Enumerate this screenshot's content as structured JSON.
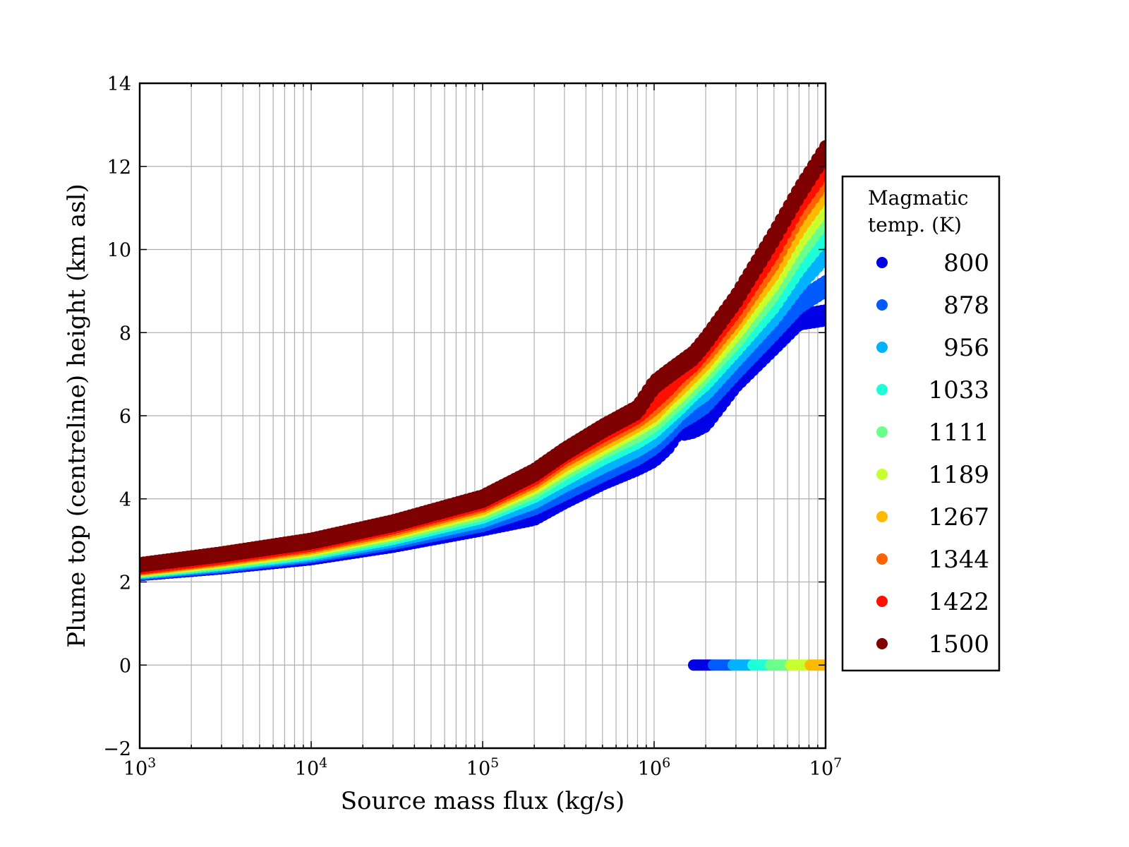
{
  "chart_data": {
    "type": "scatter",
    "xlabel": "Source mass flux (kg/s)",
    "ylabel": "Plume top (centreline) height (km asl)",
    "x_scale": "log",
    "xlim": [
      1000,
      10000000
    ],
    "ylim": [
      -2,
      14
    ],
    "grid": true,
    "x_ticks": [
      {
        "value": 1000,
        "base": "10",
        "exp": "3"
      },
      {
        "value": 10000,
        "base": "10",
        "exp": "4"
      },
      {
        "value": 100000,
        "base": "10",
        "exp": "5"
      },
      {
        "value": 1000000,
        "base": "10",
        "exp": "6"
      },
      {
        "value": 10000000,
        "base": "10",
        "exp": "7"
      }
    ],
    "y_ticks": [
      {
        "value": -2,
        "label": "−2"
      },
      {
        "value": 0,
        "label": "0"
      },
      {
        "value": 2,
        "label": "2"
      },
      {
        "value": 4,
        "label": "4"
      },
      {
        "value": 6,
        "label": "6"
      },
      {
        "value": 8,
        "label": "8"
      },
      {
        "value": 10,
        "label": "10"
      },
      {
        "value": 12,
        "label": "12"
      },
      {
        "value": 14,
        "label": "14"
      }
    ],
    "legend": {
      "title_lines": [
        "Magmatic",
        "temp. (K)"
      ],
      "placement": "right"
    },
    "series": [
      {
        "name": "800",
        "color": "#0000e8",
        "x": [
          1000,
          3000,
          10000,
          30000,
          100000,
          200000,
          300000,
          500000,
          800000,
          1000000,
          1200000,
          1400000,
          1500000,
          1700000,
          2000000,
          3000000,
          5000000,
          7000000,
          10000000
        ],
        "y": [
          2.17,
          2.33,
          2.55,
          2.85,
          3.25,
          3.5,
          3.9,
          4.35,
          4.7,
          4.9,
          5.2,
          5.6,
          5.55,
          5.6,
          5.75,
          6.7,
          7.6,
          8.2,
          8.3
        ]
      },
      {
        "name": "878",
        "color": "#005bff",
        "x": [
          1000,
          3000,
          10000,
          30000,
          100000,
          200000,
          300000,
          500000,
          800000,
          1000000,
          1200000,
          1400000,
          1700000,
          2000000,
          3000000,
          5000000,
          7000000,
          10000000
        ],
        "y": [
          2.19,
          2.36,
          2.6,
          2.92,
          3.35,
          3.75,
          4.1,
          4.55,
          4.95,
          5.2,
          5.5,
          5.8,
          6.0,
          6.2,
          7.0,
          7.95,
          8.6,
          9.0
        ]
      },
      {
        "name": "956",
        "color": "#00b2ff",
        "x": [
          1000,
          3000,
          10000,
          30000,
          100000,
          200000,
          300000,
          500000,
          800000,
          1000000,
          1200000,
          1400000,
          1700000,
          2000000,
          3000000,
          5000000,
          7000000,
          10000000
        ],
        "y": [
          2.21,
          2.39,
          2.64,
          2.98,
          3.45,
          3.9,
          4.3,
          4.75,
          5.15,
          5.4,
          5.7,
          6.0,
          6.3,
          6.5,
          7.3,
          8.3,
          9.1,
          9.8
        ]
      },
      {
        "name": "1033",
        "color": "#1dffd8",
        "x": [
          1000,
          3000,
          10000,
          30000,
          100000,
          200000,
          300000,
          500000,
          800000,
          1000000,
          1200000,
          1400000,
          1700000,
          2000000,
          3000000,
          5000000,
          7000000,
          10000000
        ],
        "y": [
          2.23,
          2.42,
          2.68,
          3.04,
          3.55,
          4.05,
          4.45,
          4.95,
          5.35,
          5.6,
          5.9,
          6.15,
          6.5,
          6.75,
          7.55,
          8.6,
          9.5,
          10.3
        ]
      },
      {
        "name": "1111",
        "color": "#6bff8b",
        "x": [
          1000,
          3000,
          10000,
          30000,
          100000,
          200000,
          300000,
          500000,
          800000,
          1000000,
          1200000,
          1400000,
          1700000,
          2000000,
          3000000,
          5000000,
          7000000,
          10000000
        ],
        "y": [
          2.25,
          2.45,
          2.72,
          3.1,
          3.62,
          4.15,
          4.6,
          5.1,
          5.5,
          5.75,
          6.05,
          6.3,
          6.65,
          6.95,
          7.75,
          8.9,
          9.85,
          10.7
        ]
      },
      {
        "name": "1189",
        "color": "#c8ff2f",
        "x": [
          1000,
          3000,
          10000,
          30000,
          100000,
          200000,
          300000,
          500000,
          800000,
          1000000,
          1200000,
          1400000,
          1700000,
          2000000,
          3000000,
          5000000,
          7000000,
          10000000
        ],
        "y": [
          2.27,
          2.48,
          2.76,
          3.15,
          3.7,
          4.25,
          4.7,
          5.2,
          5.65,
          5.9,
          6.2,
          6.45,
          6.8,
          7.1,
          7.95,
          9.15,
          10.15,
          11.0
        ]
      },
      {
        "name": "1267",
        "color": "#ffba00",
        "x": [
          1000,
          3000,
          10000,
          30000,
          100000,
          200000,
          300000,
          500000,
          800000,
          1000000,
          1200000,
          1400000,
          1700000,
          2000000,
          3000000,
          5000000,
          7000000,
          10000000
        ],
        "y": [
          2.29,
          2.51,
          2.8,
          3.2,
          3.76,
          4.33,
          4.8,
          5.3,
          5.75,
          6.0,
          6.35,
          6.6,
          6.95,
          7.25,
          8.15,
          9.4,
          10.45,
          11.35
        ]
      },
      {
        "name": "1344",
        "color": "#ff6300",
        "x": [
          1000,
          3000,
          10000,
          30000,
          100000,
          200000,
          300000,
          500000,
          800000,
          1000000,
          1200000,
          1400000,
          1700000,
          2000000,
          3000000,
          5000000,
          7000000,
          10000000
        ],
        "y": [
          2.31,
          2.54,
          2.84,
          3.25,
          3.82,
          4.4,
          4.9,
          5.4,
          5.85,
          6.15,
          6.45,
          6.75,
          7.1,
          7.4,
          8.3,
          9.65,
          10.75,
          11.65
        ]
      },
      {
        "name": "1422",
        "color": "#ff0f00",
        "x": [
          1000,
          3000,
          10000,
          30000,
          100000,
          200000,
          300000,
          500000,
          800000,
          1000000,
          1200000,
          1400000,
          1700000,
          2000000,
          3000000,
          5000000,
          7000000,
          10000000
        ],
        "y": [
          2.33,
          2.57,
          2.88,
          3.3,
          3.87,
          4.47,
          4.98,
          5.5,
          5.95,
          6.3,
          6.6,
          6.9,
          7.2,
          7.55,
          8.5,
          9.9,
          11.0,
          11.9
        ]
      },
      {
        "name": "1500",
        "color": "#7f0000",
        "x": [
          1000,
          3000,
          10000,
          30000,
          100000,
          200000,
          300000,
          500000,
          800000,
          1000000,
          1200000,
          1400000,
          1700000,
          2000000,
          3000000,
          5000000,
          7000000,
          10000000
        ],
        "y": [
          2.38,
          2.62,
          2.93,
          3.35,
          3.93,
          4.55,
          5.05,
          5.6,
          6.05,
          6.65,
          6.9,
          7.1,
          7.35,
          7.7,
          8.7,
          10.2,
          11.25,
          12.25
        ]
      }
    ],
    "zero_line_points": {
      "x_range": [
        1700000,
        10000000
      ],
      "y": 0,
      "color_ramp": [
        "#0000e8",
        "#005bff",
        "#00b2ff",
        "#1dffd8",
        "#6bff8b",
        "#c8ff2f",
        "#ffba00"
      ]
    }
  }
}
